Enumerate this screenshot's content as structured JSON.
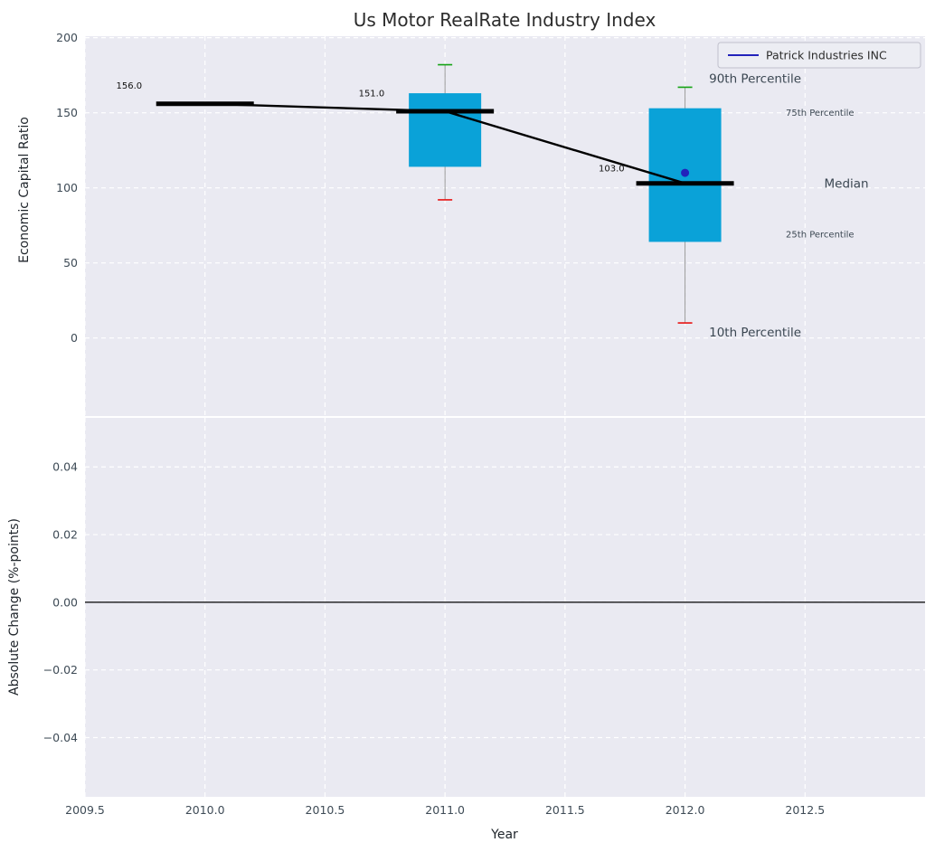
{
  "colors": {
    "axes_bg": "#eaeaf2",
    "grid": "#ffffff",
    "box": "#0aa2d8",
    "whisker": "#9a9a9a",
    "cap_high": "#15a315",
    "cap_low": "#e81515",
    "median": "#000000",
    "company": "#2222bb",
    "zero_line": "#000000"
  },
  "chart_data": [
    {
      "type": "boxplot",
      "title": "Us Motor RealRate Industry Index",
      "ylabel": "Economic Capital Ratio",
      "xlabel": "",
      "xlim": [
        2009.5,
        2013.0
      ],
      "ylim": [
        -52,
        201
      ],
      "grid": true,
      "legend_position": "upper right",
      "yticks": [
        {
          "v": 0,
          "label": "0"
        },
        {
          "v": 50,
          "label": "50"
        },
        {
          "v": 100,
          "label": "100"
        },
        {
          "v": 150,
          "label": "150"
        },
        {
          "v": 200,
          "label": "200"
        }
      ],
      "xticks": [
        2009.5,
        2010.0,
        2010.5,
        2011.0,
        2011.5,
        2012.0,
        2012.5
      ],
      "boxes": [
        {
          "x": 2010,
          "median": 156.0,
          "q1": null,
          "q3": null,
          "p10": null,
          "p90": null
        },
        {
          "x": 2011,
          "median": 151.0,
          "q1": 114,
          "q3": 163,
          "p10": 92,
          "p90": 182
        },
        {
          "x": 2012,
          "median": 103.0,
          "q1": 64,
          "q3": 153,
          "p10": 10,
          "p90": 167
        }
      ],
      "median_trend": [
        [
          2010,
          156
        ],
        [
          2011,
          151
        ],
        [
          2012,
          103
        ]
      ],
      "company_point": {
        "x": 2012,
        "y": 110,
        "color": "#2222bb",
        "label": "Patrick Industries INC"
      },
      "value_labels": [
        {
          "text": "156.0",
          "x": 2009.63,
          "y": 166
        },
        {
          "text": "151.0",
          "x": 2010.64,
          "y": 161
        },
        {
          "text": "103.0",
          "x": 2011.64,
          "y": 111
        }
      ],
      "annotations": [
        {
          "text": "90th Percentile",
          "x": 2012.1,
          "y": 170,
          "size": 13.5,
          "color": "#111111"
        },
        {
          "text": "75th Percentile",
          "x": 2012.42,
          "y": 148,
          "size": 10,
          "color": "#1ba2cc"
        },
        {
          "text": "Median",
          "x": 2012.58,
          "y": 100,
          "size": 13.5,
          "color": "#111111"
        },
        {
          "text": "25th Percentile",
          "x": 2012.42,
          "y": 67,
          "size": 10,
          "color": "#1ba2cc"
        },
        {
          "text": "10th Percentile",
          "x": 2012.1,
          "y": 1,
          "size": 13.5,
          "color": "#111111"
        }
      ]
    },
    {
      "type": "line",
      "title": "",
      "ylabel": "Absolute Change (%-points)",
      "xlabel": "Year",
      "xlim": [
        2009.5,
        2013.0
      ],
      "ylim": [
        -0.0575,
        0.0545
      ],
      "grid": true,
      "zero_line": 0.0,
      "series": [],
      "yticks": [
        {
          "v": 0.04,
          "label": "0.04"
        },
        {
          "v": 0.02,
          "label": "0.02"
        },
        {
          "v": 0.0,
          "label": "0.00"
        },
        {
          "v": -0.02,
          "label": "−0.02"
        },
        {
          "v": -0.04,
          "label": "−0.04"
        }
      ],
      "xticks": [
        {
          "v": 2009.5,
          "label": "2009.5"
        },
        {
          "v": 2010.0,
          "label": "2010.0"
        },
        {
          "v": 2010.5,
          "label": "2010.5"
        },
        {
          "v": 2011.0,
          "label": "2011.0"
        },
        {
          "v": 2011.5,
          "label": "2011.5"
        },
        {
          "v": 2012.0,
          "label": "2012.0"
        },
        {
          "v": 2012.5,
          "label": "2012.5"
        }
      ]
    }
  ]
}
